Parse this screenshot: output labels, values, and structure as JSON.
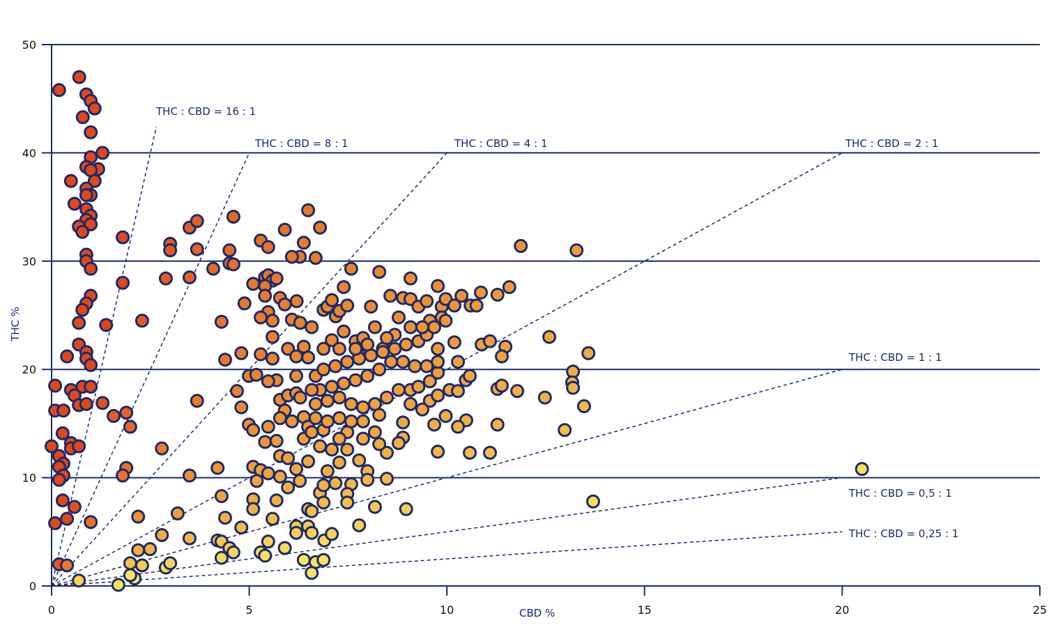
{
  "chart_data": {
    "type": "scatter",
    "title": "",
    "xlabel": "CBD %",
    "ylabel": "THC %",
    "xlim": [
      0,
      25
    ],
    "ylim": [
      0,
      50
    ],
    "x_ticks": [
      "0",
      "5",
      "10",
      "15",
      "20",
      "25"
    ],
    "y_ticks": [
      "0",
      "10",
      "20",
      "30",
      "40",
      "50"
    ],
    "grid": "horizontal",
    "colors": {
      "axis": "#1a2a6e",
      "high_ratio": "#e04818",
      "mid_ratio": "#ef9030",
      "low_ratio": "#f9e35a",
      "marker_edge": "#1a2a6e"
    },
    "ratio_lines": [
      {
        "label": "THC : CBD = 16 : 1",
        "ratio": 16,
        "cbd_end": 2.65
      },
      {
        "label": "THC : CBD = 8 : 1",
        "ratio": 8,
        "cbd_end": 5
      },
      {
        "label": "THC : CBD = 4 : 1",
        "ratio": 4,
        "cbd_end": 10
      },
      {
        "label": "THC : CBD = 2 : 1",
        "ratio": 2,
        "cbd_end": 20
      },
      {
        "label": "THC : CBD = 1 : 1",
        "ratio": 1,
        "cbd_end": 20
      },
      {
        "label": "THC : CBD = 0,5 : 1",
        "ratio": 0.5,
        "cbd_end": 20
      },
      {
        "label": "THC : CBD = 0,25 : 1",
        "ratio": 0.25,
        "cbd_end": 20
      }
    ],
    "points": [
      [
        0.19,
        45.8
      ],
      [
        0.7,
        47.0
      ],
      [
        0.88,
        45.4
      ],
      [
        0.99,
        44.8
      ],
      [
        1.09,
        44.1
      ],
      [
        0.79,
        43.3
      ],
      [
        0.99,
        41.9
      ],
      [
        1.29,
        40.0
      ],
      [
        0.99,
        39.6
      ],
      [
        0.88,
        38.7
      ],
      [
        1.18,
        38.5
      ],
      [
        0.99,
        38.4
      ],
      [
        0.49,
        37.4
      ],
      [
        1.09,
        37.4
      ],
      [
        0.88,
        36.7
      ],
      [
        0.99,
        36.1
      ],
      [
        0.88,
        36.1
      ],
      [
        0.58,
        35.3
      ],
      [
        0.88,
        34.8
      ],
      [
        0.99,
        34.2
      ],
      [
        0.88,
        33.8
      ],
      [
        0.99,
        33.4
      ],
      [
        0.69,
        33.2
      ],
      [
        0.78,
        32.7
      ],
      [
        0.88,
        30.6
      ],
      [
        0.88,
        30.0
      ],
      [
        0.99,
        29.3
      ],
      [
        0.99,
        26.8
      ],
      [
        0.88,
        26.1
      ],
      [
        0.78,
        25.5
      ],
      [
        0.69,
        24.3
      ],
      [
        0.69,
        22.3
      ],
      [
        0.39,
        21.2
      ],
      [
        0.88,
        21.6
      ],
      [
        0.88,
        21.0
      ],
      [
        0.99,
        20.4
      ],
      [
        0.09,
        18.5
      ],
      [
        0.49,
        18.1
      ],
      [
        0.78,
        18.4
      ],
      [
        0.99,
        18.4
      ],
      [
        0.58,
        17.6
      ],
      [
        0.69,
        16.7
      ],
      [
        0.88,
        16.8
      ],
      [
        0.09,
        16.2
      ],
      [
        0.3,
        16.2
      ],
      [
        1.29,
        16.9
      ],
      [
        1.38,
        24.1
      ],
      [
        0.28,
        14.1
      ],
      [
        0.49,
        13.2
      ],
      [
        0.49,
        12.7
      ],
      [
        0.69,
        12.9
      ],
      [
        0,
        12.9
      ],
      [
        0.19,
        12.0
      ],
      [
        0.3,
        11.3
      ],
      [
        0.19,
        11.0
      ],
      [
        0.3,
        10.2
      ],
      [
        0.19,
        9.8
      ],
      [
        0.28,
        7.9
      ],
      [
        0.58,
        7.3
      ],
      [
        0.09,
        5.8
      ],
      [
        0.39,
        6.2
      ],
      [
        0.99,
        5.9
      ],
      [
        0.19,
        2.0
      ],
      [
        0.39,
        1.9
      ],
      [
        0.69,
        0.5
      ],
      [
        1.8,
        32.2
      ],
      [
        1.8,
        28.0
      ],
      [
        2.29,
        24.5
      ],
      [
        1.57,
        15.7
      ],
      [
        1.89,
        16.0
      ],
      [
        1.99,
        14.7
      ],
      [
        1.89,
        10.9
      ],
      [
        1.8,
        10.2
      ],
      [
        2.19,
        6.4
      ],
      [
        2.79,
        12.7
      ],
      [
        3.49,
        10.2
      ],
      [
        3.19,
        6.7
      ],
      [
        3.0,
        31.6
      ],
      [
        3.0,
        31.0
      ],
      [
        2.89,
        28.4
      ],
      [
        3.49,
        33.1
      ],
      [
        3.68,
        33.7
      ],
      [
        3.68,
        31.1
      ],
      [
        3.49,
        28.5
      ],
      [
        3.68,
        17.1
      ],
      [
        4.09,
        29.3
      ],
      [
        4.6,
        34.1
      ],
      [
        4.5,
        31.0
      ],
      [
        4.5,
        29.8
      ],
      [
        4.6,
        29.7
      ],
      [
        4.3,
        24.4
      ],
      [
        4.39,
        20.9
      ],
      [
        4.8,
        21.5
      ],
      [
        4.88,
        26.1
      ],
      [
        4.69,
        18.0
      ],
      [
        4.8,
        16.5
      ],
      [
        4.2,
        10.9
      ],
      [
        4.3,
        8.3
      ],
      [
        4.39,
        6.3
      ],
      [
        4.8,
        5.4
      ],
      [
        3.49,
        4.4
      ],
      [
        2.79,
        4.7
      ],
      [
        4.2,
        4.2
      ],
      [
        4.3,
        4.1
      ],
      [
        4.5,
        3.5
      ],
      [
        4.6,
        3.1
      ],
      [
        4.3,
        2.6
      ],
      [
        2.89,
        1.7
      ],
      [
        3.0,
        2.1
      ],
      [
        2.49,
        3.4
      ],
      [
        2.19,
        3.3
      ],
      [
        1.99,
        2.1
      ],
      [
        2.29,
        1.9
      ],
      [
        2.1,
        0.7
      ],
      [
        1.99,
        1.0
      ],
      [
        1.69,
        0.1
      ],
      [
        5.29,
        31.9
      ],
      [
        5.48,
        31.3
      ],
      [
        5.9,
        32.9
      ],
      [
        6.49,
        34.7
      ],
      [
        6.38,
        31.7
      ],
      [
        6.28,
        30.4
      ],
      [
        6.08,
        30.4
      ],
      [
        6.68,
        30.3
      ],
      [
        6.79,
        33.1
      ],
      [
        5.1,
        27.9
      ],
      [
        5.4,
        28.5
      ],
      [
        5.48,
        28.7
      ],
      [
        5.59,
        28.2
      ],
      [
        5.4,
        27.7
      ],
      [
        5.69,
        28.4
      ],
      [
        5.4,
        26.8
      ],
      [
        5.78,
        26.6
      ],
      [
        5.9,
        26.0
      ],
      [
        6.2,
        26.3
      ],
      [
        5.48,
        25.3
      ],
      [
        5.29,
        24.8
      ],
      [
        5.59,
        24.5
      ],
      [
        6.08,
        24.6
      ],
      [
        6.29,
        24.3
      ],
      [
        6.58,
        23.9
      ],
      [
        5.59,
        23.0
      ],
      [
        5.98,
        21.9
      ],
      [
        6.38,
        22.1
      ],
      [
        6.19,
        21.2
      ],
      [
        6.49,
        21.1
      ],
      [
        5.29,
        21.4
      ],
      [
        5.59,
        21.0
      ],
      [
        4.99,
        19.4
      ],
      [
        5.18,
        19.5
      ],
      [
        5.69,
        19.0
      ],
      [
        5.48,
        18.9
      ],
      [
        6.19,
        19.4
      ],
      [
        5.78,
        17.2
      ],
      [
        5.98,
        17.6
      ],
      [
        6.19,
        17.8
      ],
      [
        6.29,
        17.4
      ],
      [
        5.9,
        16.2
      ],
      [
        6.08,
        15.2
      ],
      [
        6.38,
        15.6
      ],
      [
        6.49,
        14.7
      ],
      [
        4.99,
        14.9
      ],
      [
        5.1,
        14.4
      ],
      [
        5.48,
        14.7
      ],
      [
        5.78,
        15.5
      ],
      [
        5.4,
        13.3
      ],
      [
        5.69,
        13.4
      ],
      [
        6.38,
        13.6
      ],
      [
        5.78,
        12.0
      ],
      [
        5.98,
        11.8
      ],
      [
        5.1,
        11.0
      ],
      [
        5.29,
        10.7
      ],
      [
        5.48,
        10.4
      ],
      [
        5.78,
        10.1
      ],
      [
        6.19,
        10.8
      ],
      [
        6.49,
        11.5
      ],
      [
        5.19,
        9.7
      ],
      [
        5.98,
        9.1
      ],
      [
        6.28,
        9.7
      ],
      [
        5.1,
        8.0
      ],
      [
        5.1,
        7.1
      ],
      [
        5.69,
        7.9
      ],
      [
        5.59,
        6.2
      ],
      [
        6.49,
        7.1
      ],
      [
        6.58,
        6.9
      ],
      [
        6.79,
        8.6
      ],
      [
        6.88,
        7.7
      ],
      [
        6.19,
        5.5
      ],
      [
        6.19,
        4.9
      ],
      [
        6.49,
        5.5
      ],
      [
        6.58,
        4.9
      ],
      [
        6.9,
        4.2
      ],
      [
        7.09,
        4.8
      ],
      [
        5.48,
        4.1
      ],
      [
        5.29,
        3.1
      ],
      [
        5.4,
        2.8
      ],
      [
        5.9,
        3.5
      ],
      [
        6.38,
        2.4
      ],
      [
        6.68,
        2.2
      ],
      [
        6.88,
        2.4
      ],
      [
        6.58,
        1.2
      ],
      [
        6.88,
        25.5
      ],
      [
        6.98,
        25.8
      ],
      [
        7.09,
        26.4
      ],
      [
        7.19,
        24.9
      ],
      [
        7.28,
        25.4
      ],
      [
        7.39,
        27.6
      ],
      [
        7.48,
        25.9
      ],
      [
        7.58,
        29.3
      ],
      [
        7.39,
        23.5
      ],
      [
        7.09,
        22.7
      ],
      [
        6.88,
        21.9
      ],
      [
        7.28,
        21.9
      ],
      [
        7.69,
        22.6
      ],
      [
        7.88,
        22.9
      ],
      [
        7.78,
        21.3
      ],
      [
        8.08,
        25.8
      ],
      [
        8.29,
        29.0
      ],
      [
        8.18,
        23.9
      ],
      [
        8.38,
        21.9
      ],
      [
        8.57,
        26.8
      ],
      [
        8.68,
        23.2
      ],
      [
        8.78,
        24.8
      ],
      [
        8.89,
        26.6
      ],
      [
        9.08,
        28.4
      ],
      [
        9.08,
        26.5
      ],
      [
        9.28,
        25.8
      ],
      [
        9.49,
        26.3
      ],
      [
        9.57,
        24.5
      ],
      [
        9.77,
        27.7
      ],
      [
        9.87,
        25.8
      ],
      [
        9.97,
        26.5
      ],
      [
        10.19,
        25.9
      ],
      [
        10.37,
        26.8
      ],
      [
        10.6,
        25.9
      ],
      [
        10.75,
        25.9
      ],
      [
        10.86,
        27.1
      ],
      [
        11.28,
        26.9
      ],
      [
        11.58,
        27.6
      ],
      [
        10.88,
        22.3
      ],
      [
        11.09,
        22.6
      ],
      [
        11.48,
        22.1
      ],
      [
        11.39,
        21.2
      ],
      [
        10.19,
        22.5
      ],
      [
        10.28,
        20.7
      ],
      [
        10.48,
        19.0
      ],
      [
        10.58,
        19.4
      ],
      [
        10.07,
        18.1
      ],
      [
        10.28,
        18.0
      ],
      [
        11.28,
        18.2
      ],
      [
        11.39,
        18.5
      ],
      [
        11.78,
        18.0
      ],
      [
        12.48,
        17.4
      ],
      [
        12.59,
        23.0
      ],
      [
        11.87,
        31.4
      ],
      [
        13.28,
        31.0
      ],
      [
        13.58,
        21.5
      ],
      [
        13.19,
        19.8
      ],
      [
        13.17,
        18.8
      ],
      [
        13.19,
        18.3
      ],
      [
        13.47,
        16.6
      ],
      [
        12.98,
        14.4
      ],
      [
        11.28,
        14.9
      ],
      [
        10.49,
        15.3
      ],
      [
        10.28,
        14.7
      ],
      [
        9.97,
        15.7
      ],
      [
        9.68,
        14.9
      ],
      [
        9.57,
        17.1
      ],
      [
        9.77,
        17.6
      ],
      [
        10.58,
        12.3
      ],
      [
        11.09,
        12.3
      ],
      [
        9.77,
        12.4
      ],
      [
        8.89,
        13.7
      ],
      [
        8.78,
        13.2
      ],
      [
        8.89,
        15.1
      ],
      [
        8.48,
        12.3
      ],
      [
        8.29,
        13.1
      ],
      [
        8.48,
        9.9
      ],
      [
        8.97,
        7.1
      ],
      [
        8.18,
        7.3
      ],
      [
        7.78,
        5.6
      ],
      [
        7.99,
        10.6
      ],
      [
        7.99,
        9.8
      ],
      [
        7.58,
        9.4
      ],
      [
        7.48,
        8.5
      ],
      [
        7.48,
        7.7
      ],
      [
        7.18,
        9.5
      ],
      [
        6.88,
        9.3
      ],
      [
        6.98,
        10.6
      ],
      [
        7.28,
        11.4
      ],
      [
        7.78,
        11.6
      ],
      [
        7.48,
        12.6
      ],
      [
        7.09,
        12.6
      ],
      [
        6.79,
        12.9
      ],
      [
        6.88,
        14.4
      ],
      [
        6.58,
        14.2
      ],
      [
        7.48,
        14.2
      ],
      [
        7.88,
        13.6
      ],
      [
        8.18,
        14.2
      ],
      [
        7.58,
        15.2
      ],
      [
        7.28,
        15.5
      ],
      [
        6.98,
        15.2
      ],
      [
        6.68,
        15.5
      ],
      [
        6.68,
        16.8
      ],
      [
        6.98,
        17.1
      ],
      [
        7.28,
        17.4
      ],
      [
        7.58,
        16.8
      ],
      [
        7.88,
        16.5
      ],
      [
        8.18,
        16.8
      ],
      [
        8.48,
        17.4
      ],
      [
        8.78,
        18.1
      ],
      [
        9.08,
        18.1
      ],
      [
        9.28,
        18.4
      ],
      [
        9.57,
        18.9
      ],
      [
        9.77,
        19.7
      ],
      [
        9.49,
        20.3
      ],
      [
        9.19,
        20.3
      ],
      [
        8.89,
        20.7
      ],
      [
        8.59,
        20.7
      ],
      [
        8.29,
        20.0
      ],
      [
        7.99,
        19.4
      ],
      [
        7.69,
        19.0
      ],
      [
        7.39,
        18.7
      ],
      [
        7.09,
        18.4
      ],
      [
        6.79,
        18.1
      ],
      [
        6.58,
        18.1
      ],
      [
        6.68,
        19.4
      ],
      [
        6.88,
        20.0
      ],
      [
        7.18,
        20.3
      ],
      [
        7.48,
        20.7
      ],
      [
        7.78,
        21.0
      ],
      [
        8.08,
        21.3
      ],
      [
        8.38,
        21.6
      ],
      [
        8.68,
        21.9
      ],
      [
        8.97,
        22.3
      ],
      [
        9.28,
        22.6
      ],
      [
        9.49,
        23.2
      ],
      [
        9.68,
        23.9
      ],
      [
        9.87,
        24.8
      ],
      [
        9.38,
        23.9
      ],
      [
        9.08,
        23.9
      ],
      [
        8.48,
        22.9
      ],
      [
        7.99,
        22.3
      ],
      [
        7.69,
        21.9
      ],
      [
        9.77,
        20.7
      ],
      [
        9.77,
        21.9
      ],
      [
        9.97,
        24.5
      ],
      [
        9.08,
        16.8
      ],
      [
        9.38,
        16.3
      ],
      [
        8.29,
        15.8
      ],
      [
        7.88,
        15.2
      ],
      [
        7.28,
        13.6
      ],
      [
        20.5,
        10.8
      ],
      [
        13.7,
        7.8
      ]
    ]
  }
}
